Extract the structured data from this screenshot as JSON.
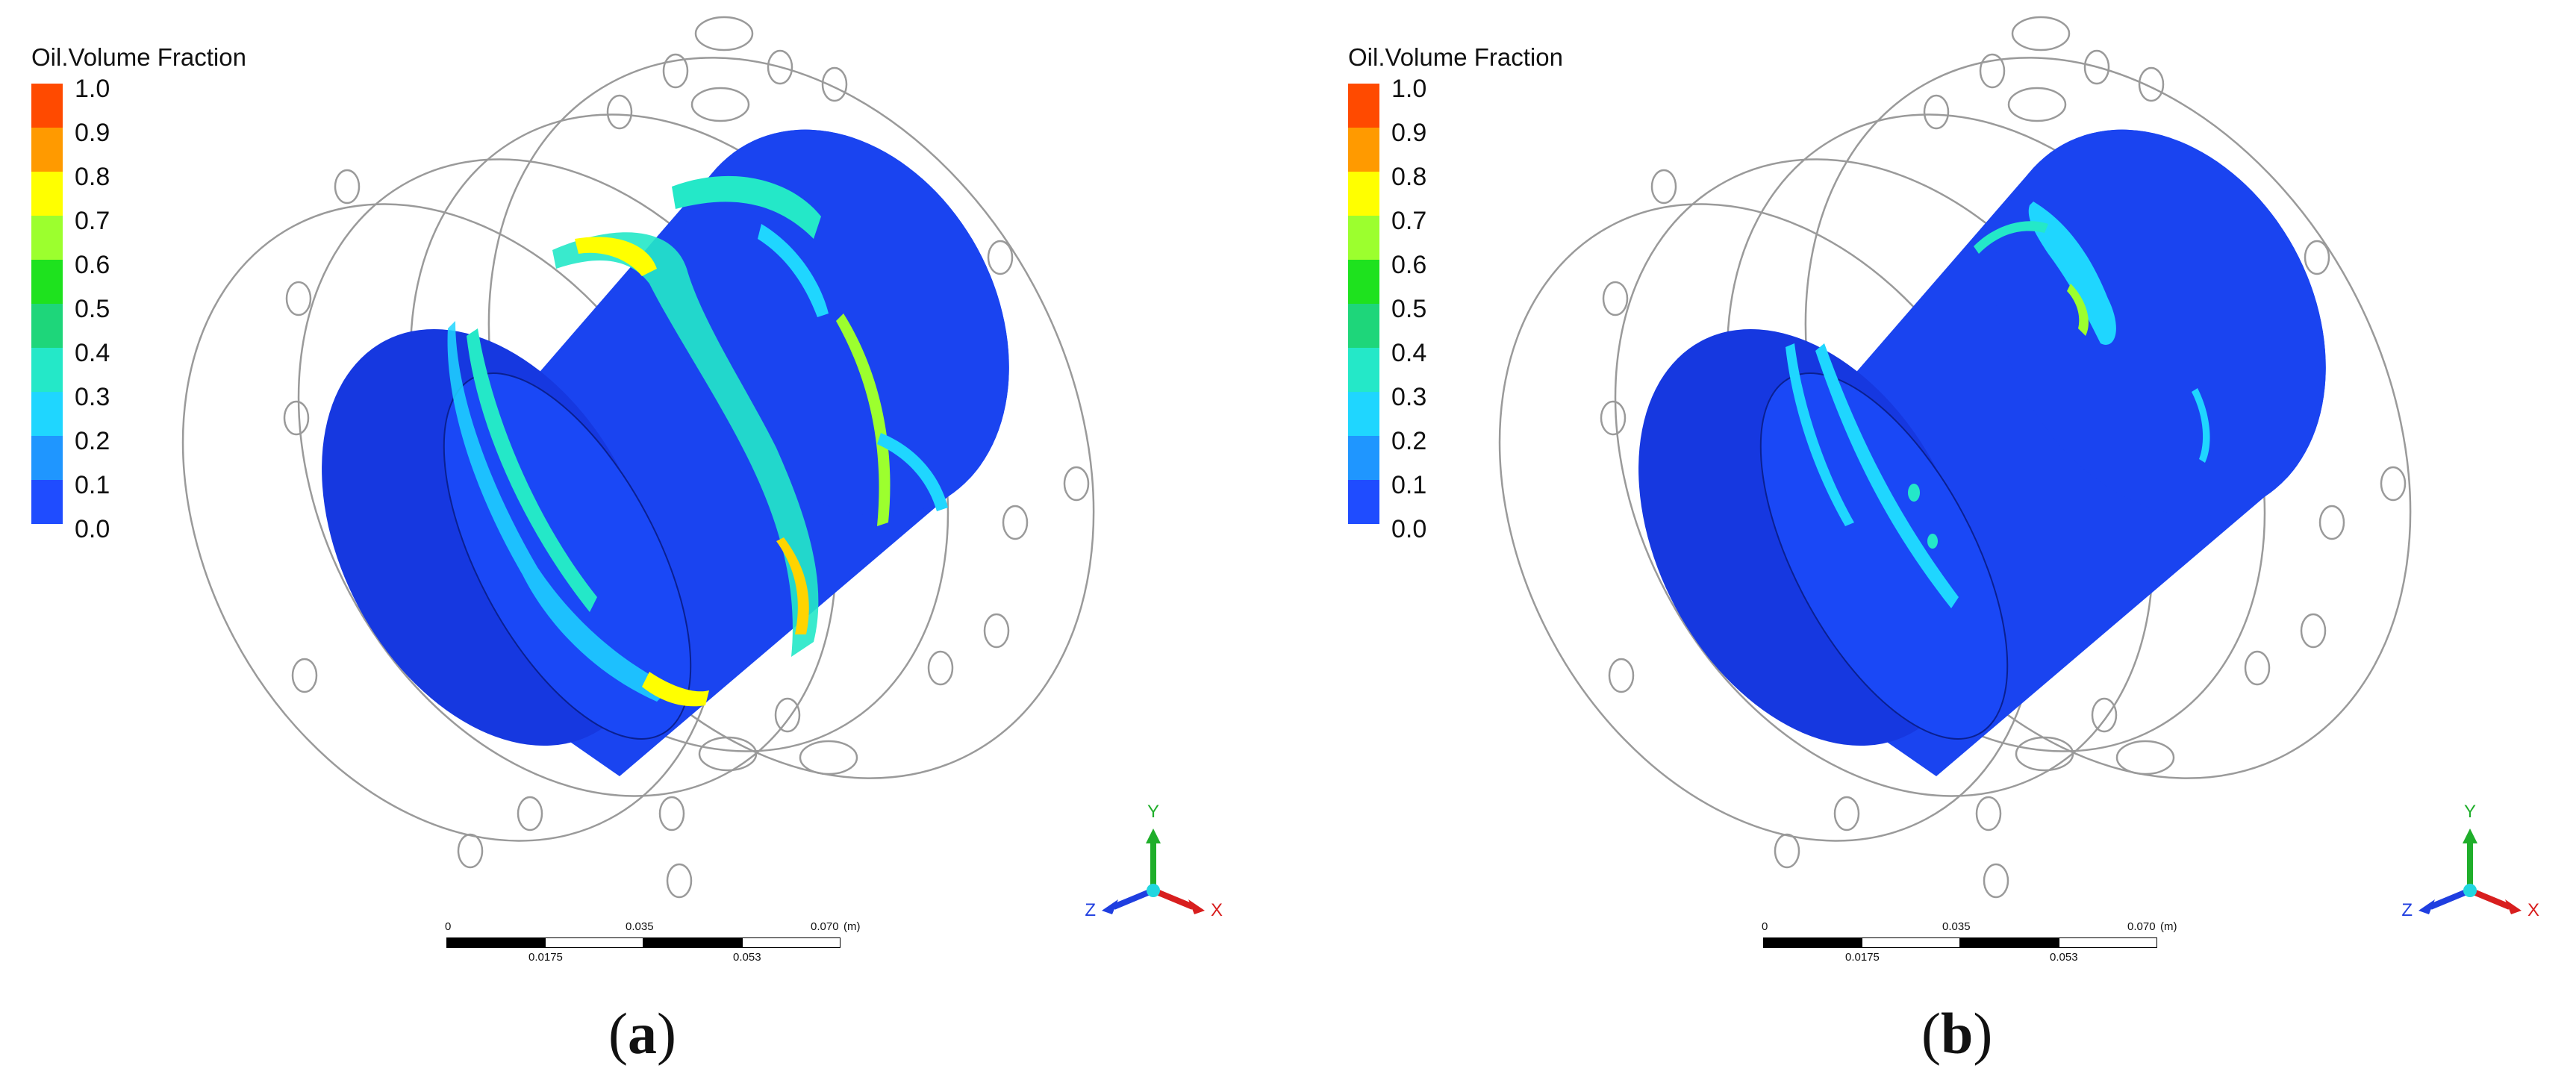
{
  "legend": {
    "title": "Oil.Volume Fraction",
    "labels": [
      "1.0",
      "0.9",
      "0.8",
      "0.7",
      "0.6",
      "0.5",
      "0.4",
      "0.3",
      "0.2",
      "0.1",
      "0.0"
    ],
    "colors": [
      "#ff4a00",
      "#ff9a00",
      "#ffd400",
      "#ffff00",
      "#9cff2e",
      "#1ee21e",
      "#1ed67a",
      "#24e8c8",
      "#1fd6ff",
      "#1f96ff",
      "#1f4cff"
    ]
  },
  "axes_triad": {
    "y": "Y",
    "x": "X",
    "z": "Z"
  },
  "scale_bar": {
    "top_labels": [
      "0",
      "0.035",
      "0.070"
    ],
    "bottom_labels": [
      "0.0175",
      "0.053"
    ],
    "unit": "(m)"
  },
  "panels": [
    {
      "caption_open": "(",
      "caption_letter": "a",
      "caption_close": ")"
    },
    {
      "caption_open": "(",
      "caption_letter": "b",
      "caption_close": ")"
    }
  ],
  "colors": {
    "cylinder_blue": "#1a44f0",
    "outline_gray": "#9a9a9a",
    "axis_green": "#1fae2a",
    "axis_red": "#d81e1e",
    "axis_blue": "#1f3ee0"
  }
}
